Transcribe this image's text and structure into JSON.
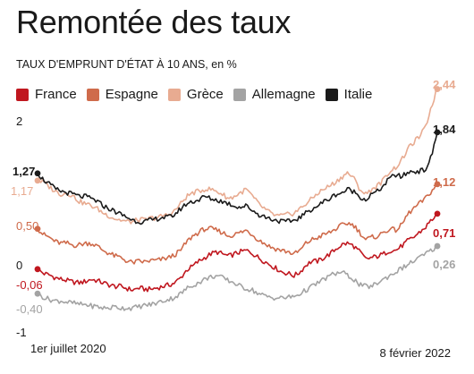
{
  "chart_data": {
    "type": "line",
    "title": "Remontée des taux",
    "subtitle": "TAUX D'EMPRUNT D'ÉTAT À 10 ANS, en %",
    "x_start": "1er juillet 2020",
    "x_end": "8 février 2022",
    "ylim": [
      -1,
      2.6
    ],
    "yticks": [
      {
        "value": 2,
        "label": "2"
      },
      {
        "value": 0,
        "label": "0"
      },
      {
        "value": -1,
        "label": "-1"
      }
    ],
    "grid": false,
    "legend_position": "top-left",
    "series": [
      {
        "name": "France",
        "color": "#c0171f",
        "start": {
          "value": -0.06,
          "label": "-0,06"
        },
        "end": {
          "value": 0.71,
          "label": "0,71"
        },
        "values": [
          -0.06,
          -0.12,
          -0.14,
          -0.18,
          -0.2,
          -0.22,
          -0.24,
          -0.25,
          -0.23,
          -0.2,
          -0.22,
          -0.25,
          -0.28,
          -0.3,
          -0.3,
          -0.33,
          -0.35,
          -0.32,
          -0.34,
          -0.34,
          -0.32,
          -0.3,
          -0.28,
          -0.25,
          -0.18,
          -0.07,
          -0.02,
          0.05,
          0.1,
          0.15,
          0.18,
          0.15,
          0.12,
          0.15,
          0.18,
          0.2,
          0.16,
          0.1,
          0.05,
          0.0,
          -0.05,
          -0.1,
          -0.12,
          -0.15,
          -0.1,
          0.0,
          0.05,
          0.05,
          0.1,
          0.15,
          0.22,
          0.28,
          0.3,
          0.26,
          0.18,
          0.08,
          0.1,
          0.12,
          0.15,
          0.2,
          0.2,
          0.26,
          0.33,
          0.38,
          0.45,
          0.52,
          0.62,
          0.71
        ]
      },
      {
        "name": "Espagne",
        "color": "#cf6b4b",
        "start": {
          "value": 0.5,
          "label": "0,50"
        },
        "end": {
          "value": 1.12,
          "label": "1,12"
        },
        "values": [
          0.5,
          0.42,
          0.38,
          0.32,
          0.3,
          0.3,
          0.27,
          0.28,
          0.3,
          0.3,
          0.26,
          0.2,
          0.16,
          0.12,
          0.1,
          0.05,
          0.03,
          0.05,
          0.04,
          0.06,
          0.06,
          0.08,
          0.1,
          0.14,
          0.2,
          0.32,
          0.4,
          0.45,
          0.5,
          0.5,
          0.48,
          0.45,
          0.4,
          0.42,
          0.45,
          0.48,
          0.42,
          0.35,
          0.3,
          0.25,
          0.22,
          0.2,
          0.18,
          0.15,
          0.2,
          0.3,
          0.35,
          0.38,
          0.42,
          0.45,
          0.5,
          0.55,
          0.58,
          0.55,
          0.45,
          0.35,
          0.38,
          0.4,
          0.45,
          0.5,
          0.48,
          0.55,
          0.7,
          0.78,
          0.85,
          0.92,
          1.02,
          1.12
        ]
      },
      {
        "name": "Grèce",
        "color": "#e8ab91",
        "start": {
          "value": 1.17,
          "label": "1,17"
        },
        "end": {
          "value": 2.44,
          "label": "2,44"
        },
        "values": [
          1.17,
          1.15,
          1.08,
          1.02,
          0.98,
          1.0,
          0.95,
          0.88,
          0.85,
          0.82,
          0.78,
          0.72,
          0.68,
          0.64,
          0.62,
          0.6,
          0.6,
          0.63,
          0.62,
          0.65,
          0.65,
          0.68,
          0.7,
          0.75,
          0.85,
          0.95,
          1.0,
          1.02,
          1.05,
          1.05,
          1.02,
          0.98,
          0.92,
          0.95,
          1.0,
          1.05,
          0.95,
          0.85,
          0.78,
          0.72,
          0.68,
          0.68,
          0.7,
          0.72,
          0.78,
          0.85,
          0.92,
          1.0,
          1.05,
          1.1,
          1.15,
          1.22,
          1.28,
          1.2,
          1.05,
          0.98,
          1.05,
          1.1,
          1.18,
          1.3,
          1.35,
          1.45,
          1.6,
          1.7,
          1.78,
          1.9,
          2.2,
          2.44
        ]
      },
      {
        "name": "Allemagne",
        "color": "#a3a3a3",
        "start": {
          "value": -0.4,
          "label": "-0,40"
        },
        "end": {
          "value": 0.26,
          "label": "0,26"
        },
        "values": [
          -0.4,
          -0.45,
          -0.48,
          -0.5,
          -0.5,
          -0.52,
          -0.53,
          -0.55,
          -0.55,
          -0.57,
          -0.58,
          -0.6,
          -0.6,
          -0.58,
          -0.6,
          -0.6,
          -0.6,
          -0.58,
          -0.56,
          -0.55,
          -0.53,
          -0.5,
          -0.48,
          -0.45,
          -0.4,
          -0.33,
          -0.28,
          -0.25,
          -0.2,
          -0.17,
          -0.15,
          -0.18,
          -0.22,
          -0.25,
          -0.3,
          -0.33,
          -0.35,
          -0.4,
          -0.43,
          -0.45,
          -0.46,
          -0.46,
          -0.45,
          -0.44,
          -0.4,
          -0.35,
          -0.3,
          -0.25,
          -0.2,
          -0.15,
          -0.12,
          -0.1,
          -0.15,
          -0.2,
          -0.28,
          -0.3,
          -0.3,
          -0.25,
          -0.2,
          -0.15,
          -0.1,
          -0.05,
          0.0,
          0.05,
          0.1,
          0.15,
          0.2,
          0.26
        ]
      },
      {
        "name": "Italie",
        "color": "#1a1a1a",
        "start": {
          "value": 1.27,
          "label": "1,27"
        },
        "end": {
          "value": 1.84,
          "label": "1,84"
        },
        "values": [
          1.27,
          1.18,
          1.12,
          1.05,
          1.02,
          1.0,
          0.98,
          0.95,
          0.95,
          0.92,
          0.88,
          0.82,
          0.78,
          0.74,
          0.7,
          0.66,
          0.62,
          0.6,
          0.6,
          0.62,
          0.64,
          0.66,
          0.66,
          0.7,
          0.78,
          0.85,
          0.88,
          0.9,
          0.95,
          0.92,
          0.9,
          0.88,
          0.85,
          0.82,
          0.8,
          0.82,
          0.76,
          0.7,
          0.67,
          0.64,
          0.62,
          0.6,
          0.6,
          0.62,
          0.66,
          0.72,
          0.78,
          0.82,
          0.88,
          0.92,
          0.98,
          1.0,
          1.05,
          1.02,
          0.95,
          0.9,
          0.98,
          1.02,
          1.1,
          1.2,
          1.25,
          1.22,
          1.28,
          1.3,
          1.3,
          1.32,
          1.5,
          1.84
        ]
      }
    ]
  }
}
